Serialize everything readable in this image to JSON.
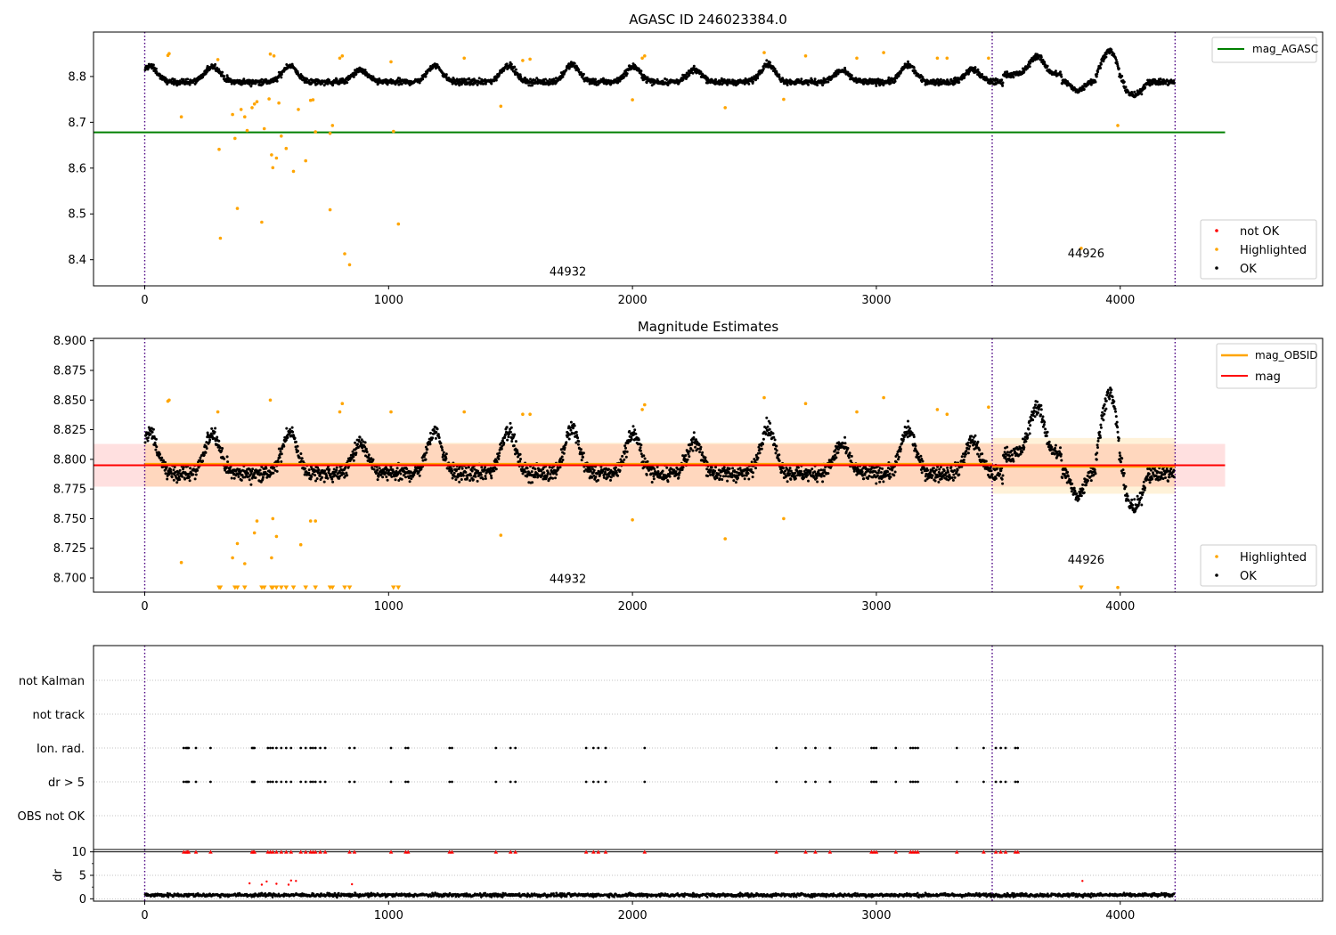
{
  "chart_data": [
    {
      "type": "scatter",
      "title": "AGASC ID 246023384.0",
      "xlim": [
        -210,
        4830
      ],
      "ylim": [
        8.343,
        8.897
      ],
      "xticks": [
        0,
        1000,
        2000,
        3000,
        4000
      ],
      "yticks": [
        8.4,
        8.5,
        8.6,
        8.7,
        8.8
      ],
      "grid": false,
      "legend_top": {
        "placement": "top-right",
        "entries": [
          {
            "label": "mag_AGASC",
            "color": "#008000",
            "kind": "line"
          }
        ]
      },
      "legend_bottom": {
        "placement": "bottom-right",
        "entries": [
          {
            "label": "not OK",
            "color": "#ff0000",
            "kind": "point"
          },
          {
            "label": "Highlighted",
            "color": "#ffa500",
            "kind": "point"
          },
          {
            "label": "OK",
            "color": "#000000",
            "kind": "point"
          }
        ]
      },
      "hlines": [
        {
          "name": "mag_AGASC",
          "y": 8.678,
          "x0": -210,
          "x1": 4430,
          "color": "#008000"
        }
      ],
      "vlines": [
        0,
        3475,
        4225
      ],
      "obsid_labels": [
        {
          "text": "44932",
          "x": 1735,
          "y": 8.365
        },
        {
          "text": "44926",
          "x": 3860,
          "y": 8.405
        }
      ],
      "highlighted_points": [
        [
          95,
          8.846
        ],
        [
          100,
          8.85
        ],
        [
          150,
          8.712
        ],
        [
          300,
          8.837
        ],
        [
          305,
          8.641
        ],
        [
          310,
          8.447
        ],
        [
          360,
          8.717
        ],
        [
          370,
          8.665
        ],
        [
          380,
          8.512
        ],
        [
          395,
          8.728
        ],
        [
          410,
          8.712
        ],
        [
          420,
          8.682
        ],
        [
          440,
          8.732
        ],
        [
          450,
          8.74
        ],
        [
          460,
          8.745
        ],
        [
          480,
          8.482
        ],
        [
          490,
          8.686
        ],
        [
          510,
          8.751
        ],
        [
          515,
          8.849
        ],
        [
          520,
          8.629
        ],
        [
          525,
          8.601
        ],
        [
          530,
          8.845
        ],
        [
          540,
          8.622
        ],
        [
          550,
          8.742
        ],
        [
          560,
          8.67
        ],
        [
          580,
          8.643
        ],
        [
          610,
          8.593
        ],
        [
          630,
          8.728
        ],
        [
          660,
          8.616
        ],
        [
          680,
          8.748
        ],
        [
          690,
          8.749
        ],
        [
          700,
          8.679
        ],
        [
          760,
          8.676
        ],
        [
          760,
          8.509
        ],
        [
          770,
          8.693
        ],
        [
          800,
          8.84
        ],
        [
          810,
          8.845
        ],
        [
          820,
          8.413
        ],
        [
          840,
          8.389
        ],
        [
          1010,
          8.832
        ],
        [
          1020,
          8.68
        ],
        [
          1040,
          8.478
        ],
        [
          1310,
          8.84
        ],
        [
          1460,
          8.735
        ],
        [
          1550,
          8.835
        ],
        [
          1580,
          8.838
        ],
        [
          2000,
          8.749
        ],
        [
          2040,
          8.84
        ],
        [
          2050,
          8.845
        ],
        [
          2380,
          8.732
        ],
        [
          2540,
          8.852
        ],
        [
          2620,
          8.75
        ],
        [
          2710,
          8.845
        ],
        [
          2920,
          8.84
        ],
        [
          3030,
          8.852
        ],
        [
          3250,
          8.84
        ],
        [
          3290,
          8.84
        ],
        [
          3460,
          8.84
        ],
        [
          3840,
          8.425
        ],
        [
          3990,
          8.693
        ]
      ]
    },
    {
      "type": "scatter",
      "title": "Magnitude Estimates",
      "xlim": [
        -210,
        4830
      ],
      "ylim": [
        8.688,
        8.902
      ],
      "xticks": [
        0,
        1000,
        2000,
        3000,
        4000
      ],
      "yticks": [
        8.7,
        8.725,
        8.75,
        8.775,
        8.8,
        8.825,
        8.85,
        8.875,
        8.9
      ],
      "grid": false,
      "legend_top": {
        "placement": "top-right",
        "entries": [
          {
            "label": "mag_OBSID",
            "color": "#ffa500",
            "kind": "line"
          },
          {
            "label": "mag",
            "color": "#ff0000",
            "kind": "line"
          }
        ]
      },
      "legend_bottom": {
        "placement": "bottom-right",
        "entries": [
          {
            "label": "Highlighted",
            "color": "#ffa500",
            "kind": "point"
          },
          {
            "label": "OK",
            "color": "#000000",
            "kind": "point"
          }
        ]
      },
      "mag": {
        "value": 8.795,
        "band": [
          8.777,
          8.813
        ],
        "x0": -210,
        "x1": 4430
      },
      "mag_obsid": [
        {
          "x0": 0,
          "x1": 3475,
          "value": 8.796,
          "band": [
            8.777,
            8.814
          ]
        },
        {
          "x0": 3475,
          "x1": 4225,
          "value": 8.794,
          "band": [
            8.771,
            8.818
          ]
        }
      ],
      "vlines": [
        0,
        3475,
        4225
      ],
      "obsid_labels": [
        {
          "text": "44932",
          "x": 1735,
          "y": 8.696
        },
        {
          "text": "44926",
          "x": 3860,
          "y": 8.712
        }
      ],
      "highlighted_points": [
        [
          95,
          8.849
        ],
        [
          100,
          8.85
        ],
        [
          150,
          8.713
        ],
        [
          300,
          8.84
        ],
        [
          360,
          8.717
        ],
        [
          380,
          8.729
        ],
        [
          410,
          8.712
        ],
        [
          450,
          8.738
        ],
        [
          460,
          8.748
        ],
        [
          515,
          8.85
        ],
        [
          520,
          8.717
        ],
        [
          525,
          8.75
        ],
        [
          540,
          8.735
        ],
        [
          640,
          8.728
        ],
        [
          680,
          8.748
        ],
        [
          700,
          8.748
        ],
        [
          800,
          8.84
        ],
        [
          810,
          8.847
        ],
        [
          1010,
          8.84
        ],
        [
          1310,
          8.84
        ],
        [
          1460,
          8.736
        ],
        [
          1550,
          8.838
        ],
        [
          1580,
          8.838
        ],
        [
          2000,
          8.749
        ],
        [
          2040,
          8.842
        ],
        [
          2050,
          8.846
        ],
        [
          2380,
          8.733
        ],
        [
          2540,
          8.852
        ],
        [
          2620,
          8.75
        ],
        [
          2710,
          8.847
        ],
        [
          2920,
          8.84
        ],
        [
          3030,
          8.852
        ],
        [
          3250,
          8.842
        ],
        [
          3290,
          8.838
        ],
        [
          3460,
          8.844
        ],
        [
          3990,
          8.692
        ]
      ],
      "clipped_low_x": [
        305,
        310,
        370,
        380,
        410,
        480,
        490,
        520,
        525,
        540,
        560,
        580,
        610,
        660,
        700,
        760,
        770,
        820,
        840,
        1020,
        1040,
        3840
      ]
    },
    {
      "type": "scatter",
      "xlim": [
        -210,
        4830
      ],
      "flag_rows": [
        "not Kalman",
        "not track",
        "Ion. rad.",
        "dr > 5",
        "OBS not OK"
      ],
      "grid": true,
      "vlines": [
        0,
        3475,
        4225
      ],
      "flag_x": [
        160,
        170,
        175,
        180,
        210,
        270,
        440,
        445,
        450,
        505,
        515,
        525,
        540,
        560,
        580,
        600,
        640,
        660,
        680,
        690,
        700,
        720,
        740,
        840,
        860,
        1010,
        1070,
        1080,
        1250,
        1260,
        1440,
        1500,
        1520,
        1810,
        1840,
        1860,
        1890,
        2050,
        2590,
        2710,
        2750,
        2810,
        2980,
        2990,
        3000,
        3080,
        3140,
        3150,
        3160,
        3170,
        3330,
        3440,
        3490,
        3510,
        3530,
        3570,
        3580
      ]
    },
    {
      "type": "scatter",
      "ylabel": "dr",
      "xlim": [
        -210,
        4830
      ],
      "ylim": [
        -0.5,
        10.5
      ],
      "xticks": [
        0,
        1000,
        2000,
        3000,
        4000
      ],
      "yticks": [
        0,
        5,
        10
      ],
      "grid": true,
      "vlines": [
        0,
        3475,
        4225
      ],
      "hline": 10,
      "high_dr_points": [
        [
          430,
          3.3
        ],
        [
          480,
          3.0
        ],
        [
          500,
          3.7
        ],
        [
          540,
          3.2
        ],
        [
          590,
          3.0
        ],
        [
          600,
          3.9
        ],
        [
          620,
          3.8
        ],
        [
          850,
          3.1
        ],
        [
          3845,
          3.8
        ]
      ]
    }
  ]
}
